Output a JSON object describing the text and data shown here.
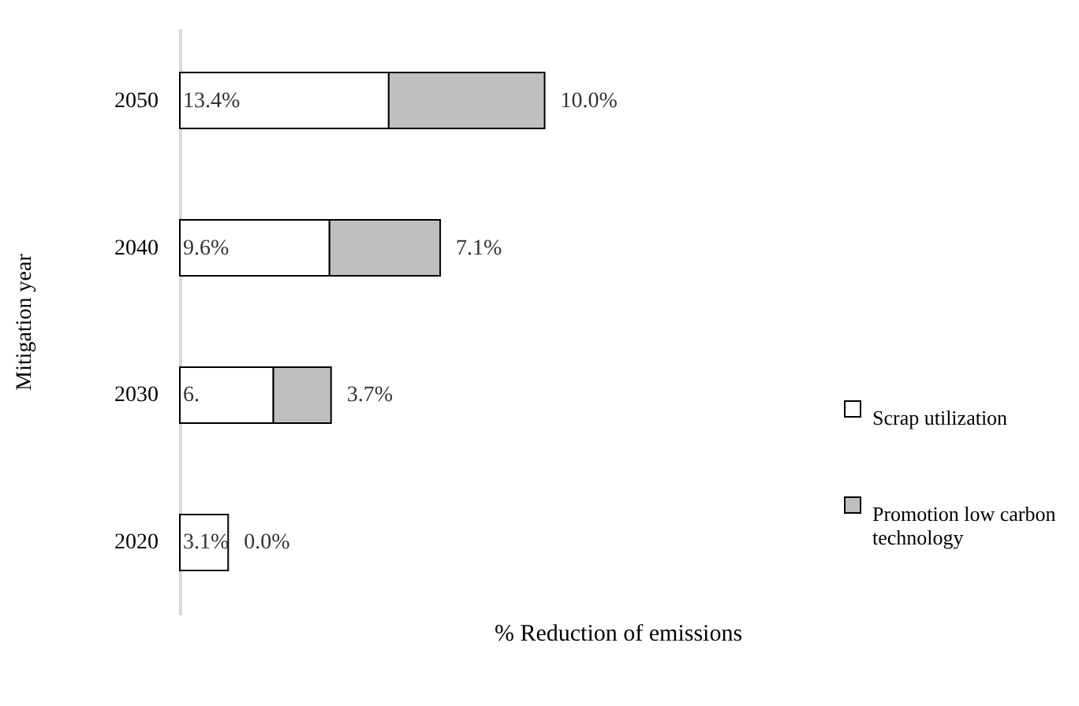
{
  "chart_data": {
    "type": "bar",
    "orientation": "horizontal",
    "stacked": true,
    "categories": [
      "2050",
      "2040",
      "2030",
      "2020"
    ],
    "xlabel": "% Reduction of emissions",
    "ylabel": "Mitigation year",
    "series": [
      {
        "name": "Scrap utilization",
        "color": "#ffffff",
        "values": [
          13.4,
          9.6,
          6.0,
          3.1
        ],
        "value_labels": [
          "13.4%",
          "9.6%",
          "6.",
          "3.1%"
        ]
      },
      {
        "name": "Promotion low carbon technology",
        "color": "#bfbfbf",
        "values": [
          10.0,
          7.1,
          3.7,
          0.0
        ],
        "value_labels": [
          "10.0%",
          "7.1%",
          "3.7%",
          "0.0%"
        ]
      }
    ],
    "legend": "right",
    "grid": false
  }
}
